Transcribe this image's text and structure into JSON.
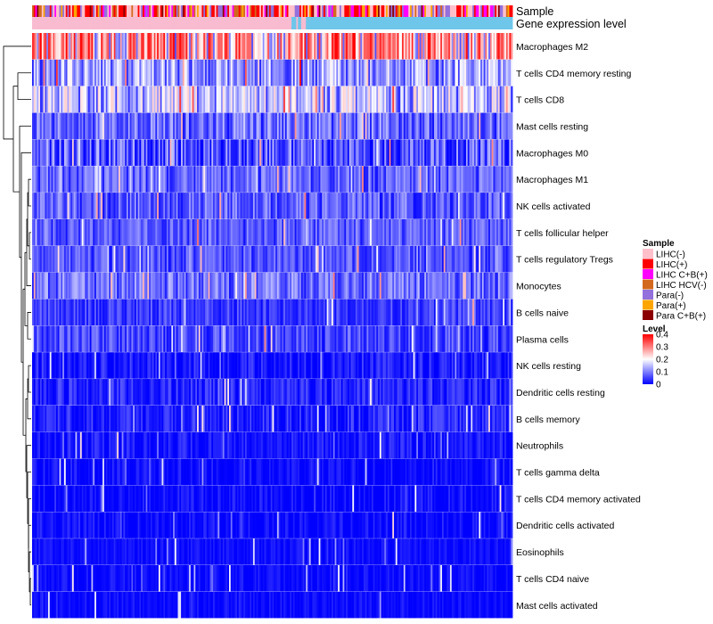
{
  "chart_data": {
    "type": "heatmap",
    "title": "",
    "annotation_tracks": [
      {
        "name": "Sample",
        "label": "Sample"
      },
      {
        "name": "Gene expression level",
        "label": "Gene expression level"
      }
    ],
    "rows": [
      {
        "label": "Macrophages M2",
        "mean": 0.3,
        "spread": 0.1
      },
      {
        "label": "T cells CD4 memory resting",
        "mean": 0.14,
        "spread": 0.07
      },
      {
        "label": "T cells CD8",
        "mean": 0.17,
        "spread": 0.07
      },
      {
        "label": "Mast cells resting",
        "mean": 0.09,
        "spread": 0.06
      },
      {
        "label": "Macrophages M0",
        "mean": 0.07,
        "spread": 0.08
      },
      {
        "label": "Macrophages M1",
        "mean": 0.09,
        "spread": 0.04
      },
      {
        "label": "NK cells activated",
        "mean": 0.08,
        "spread": 0.05
      },
      {
        "label": "T cells follicular helper",
        "mean": 0.08,
        "spread": 0.04
      },
      {
        "label": "T cells regulatory  Tregs",
        "mean": 0.07,
        "spread": 0.04
      },
      {
        "label": "Monocytes",
        "mean": 0.1,
        "spread": 0.05
      },
      {
        "label": "B cells naive",
        "mean": 0.05,
        "spread": 0.04
      },
      {
        "label": "Plasma cells",
        "mean": 0.06,
        "spread": 0.05
      },
      {
        "label": "NK cells resting",
        "mean": 0.02,
        "spread": 0.04
      },
      {
        "label": "Dendritic cells resting",
        "mean": 0.03,
        "spread": 0.04
      },
      {
        "label": "B cells memory",
        "mean": 0.03,
        "spread": 0.04
      },
      {
        "label": "Neutrophils",
        "mean": 0.02,
        "spread": 0.03
      },
      {
        "label": "T cells gamma delta",
        "mean": 0.01,
        "spread": 0.03
      },
      {
        "label": "T cells CD4 memory activated",
        "mean": 0.01,
        "spread": 0.03
      },
      {
        "label": "Dendritic cells activated",
        "mean": 0.01,
        "spread": 0.03
      },
      {
        "label": "Eosinophils",
        "mean": 0.01,
        "spread": 0.02
      },
      {
        "label": "T cells CD4 naive",
        "mean": 0.01,
        "spread": 0.02
      },
      {
        "label": "Mast cells activated",
        "mean": 0.01,
        "spread": 0.02
      }
    ],
    "n_samples": 300,
    "sample_legend": {
      "title": "Sample",
      "entries": [
        {
          "label": "LIHC(-)",
          "color": "#ffc0cb",
          "weight": 0.3
        },
        {
          "label": "LIHC(+)",
          "color": "#ff0000",
          "weight": 0.22
        },
        {
          "label": "LIHC C+B(+)",
          "color": "#ff00ff",
          "weight": 0.12
        },
        {
          "label": "LIHC HCV(-)",
          "color": "#d2691e",
          "weight": 0.06
        },
        {
          "label": "Para(-)",
          "color": "#9370db",
          "weight": 0.16
        },
        {
          "label": "Para(+)",
          "color": "#ffa500",
          "weight": 0.08
        },
        {
          "label": "Para C+B(+)",
          "color": "#8b0000",
          "weight": 0.06
        }
      ]
    },
    "level_legend": {
      "title": "Level",
      "range": [
        0,
        0.4
      ],
      "ticks": [
        {
          "value": 0.4,
          "label": "0.4"
        },
        {
          "value": 0.3,
          "label": "0.3"
        },
        {
          "value": 0.2,
          "label": "0.2"
        },
        {
          "value": 0.1,
          "label": "0.1"
        },
        {
          "value": 0,
          "label": "0"
        }
      ],
      "colors": [
        "#0000ff",
        "#ffffff",
        "#ff0000"
      ]
    },
    "expression_track": {
      "low_color": "#f8bbd0",
      "high_color": "#6ec6ea",
      "transition_fraction": 0.55
    }
  }
}
